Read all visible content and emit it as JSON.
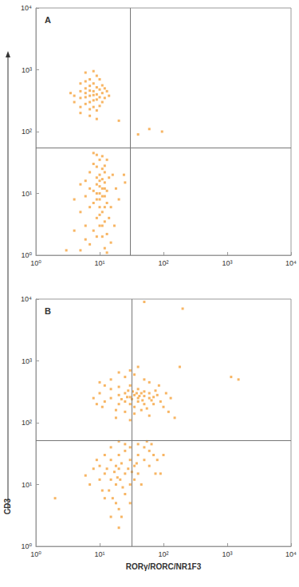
{
  "chart_data": [
    {
      "type": "scatter",
      "title": "A",
      "color": "#f5a33c",
      "marker": "square",
      "log": true,
      "grid": false,
      "quadrant": {
        "x": 30,
        "y": 55
      },
      "xlim": [
        1,
        10000
      ],
      "xticks": [
        {
          "value": 1,
          "label": "10⁰"
        },
        {
          "value": 10,
          "label": "10¹"
        },
        {
          "value": 100,
          "label": "10²"
        },
        {
          "value": 1000,
          "label": "10³"
        },
        {
          "value": 10000,
          "label": "10⁴"
        }
      ],
      "ylim": [
        1,
        10000
      ],
      "yticks": [
        {
          "value": 1,
          "label": "10⁰"
        },
        {
          "value": 10,
          "label": "10¹"
        },
        {
          "value": 100,
          "label": "10²"
        },
        {
          "value": 1000,
          "label": "10³"
        },
        {
          "value": 10000,
          "label": "10⁴"
        }
      ],
      "x": [
        5,
        6,
        7,
        8,
        9,
        7,
        6,
        8,
        10,
        11,
        9,
        7,
        6,
        5,
        4,
        8,
        10,
        9,
        7,
        6,
        12,
        11,
        5,
        8,
        9,
        7,
        10,
        4,
        13,
        6,
        8,
        5,
        3.5,
        12,
        9,
        7,
        8,
        6,
        10,
        11,
        14,
        7,
        9,
        5,
        60,
        95,
        40,
        20,
        10,
        11,
        9,
        12,
        10,
        11,
        9,
        8,
        12,
        13,
        10,
        11,
        9,
        12,
        10,
        8,
        11,
        13,
        7,
        12,
        5,
        6,
        15,
        14,
        15,
        13,
        14,
        12,
        10,
        9,
        11,
        8,
        7,
        6,
        6,
        7,
        5,
        4,
        5,
        8,
        13,
        16,
        18,
        20,
        24,
        25,
        9,
        10,
        11,
        12,
        9,
        10,
        11,
        8,
        12,
        7,
        10,
        11,
        9,
        13,
        6,
        4,
        3,
        17,
        10,
        9,
        12
      ],
      "values": [
        350,
        420,
        380,
        450,
        400,
        300,
        280,
        320,
        360,
        420,
        520,
        550,
        500,
        450,
        380,
        600,
        700,
        800,
        700,
        650,
        500,
        300,
        250,
        250,
        220,
        230,
        260,
        300,
        450,
        900,
        950,
        600,
        420,
        350,
        330,
        460,
        390,
        360,
        480,
        560,
        380,
        180,
        160,
        200,
        110,
        100,
        90,
        150,
        10,
        12,
        8,
        15,
        20,
        25,
        14,
        11,
        9,
        7,
        6,
        5,
        4,
        3.5,
        3,
        2.5,
        2,
        2.2,
        1.5,
        1.3,
        1.2,
        1.8,
        1.6,
        4,
        6,
        11,
        18,
        28,
        35,
        42,
        40,
        30,
        22,
        16,
        9,
        6,
        5,
        8,
        14,
        45,
        35,
        20,
        12,
        8,
        20,
        15,
        18,
        13,
        9,
        6,
        27,
        8,
        17,
        7,
        22,
        12,
        4.5,
        3,
        2,
        1.1,
        3,
        2.5,
        1.2,
        3,
        16,
        10,
        12
      ]
    },
    {
      "type": "scatter",
      "title": "B",
      "color": "#f5a33c",
      "marker": "square",
      "log": true,
      "grid": false,
      "xlabel": "RORγ/RORC/NR1F3",
      "ylabel": "CD3",
      "quadrant": {
        "x": 32,
        "y": 52
      },
      "xlim": [
        1,
        10000
      ],
      "xticks": [
        {
          "value": 1,
          "label": "10⁰"
        },
        {
          "value": 10,
          "label": "10¹"
        },
        {
          "value": 100,
          "label": "10²"
        },
        {
          "value": 1000,
          "label": "10³"
        },
        {
          "value": 10000,
          "label": "10⁴"
        }
      ],
      "ylim": [
        1,
        10000
      ],
      "yticks": [
        {
          "value": 1,
          "label": "10⁰"
        },
        {
          "value": 10,
          "label": "10¹"
        },
        {
          "value": 100,
          "label": "10²"
        },
        {
          "value": 1000,
          "label": "10³"
        },
        {
          "value": 10000,
          "label": "10⁴"
        }
      ],
      "x": [
        10,
        15,
        20,
        25,
        30,
        35,
        40,
        45,
        50,
        60,
        70,
        80,
        20,
        25,
        30,
        35,
        40,
        50,
        15,
        20,
        30,
        40,
        50,
        60,
        12,
        18,
        25,
        35,
        45,
        55,
        70,
        90,
        100,
        120,
        150,
        10,
        15,
        25,
        35,
        50,
        60,
        30,
        20,
        40,
        8,
        11,
        28,
        33,
        38,
        42,
        22,
        27,
        32,
        47,
        65,
        75,
        85,
        110,
        130,
        18,
        30,
        60,
        9,
        12,
        1150,
        1500,
        180,
        50,
        200,
        10,
        12,
        15,
        18,
        20,
        22,
        25,
        15,
        18,
        20,
        25,
        30,
        35,
        40,
        50,
        60,
        70,
        80,
        12,
        10,
        8,
        9,
        14,
        16,
        18,
        20,
        22,
        25,
        30,
        35,
        40,
        45,
        30,
        40,
        50,
        60,
        15,
        20,
        25,
        100,
        90,
        7,
        6,
        11,
        13,
        17,
        19,
        21,
        23,
        28,
        32,
        38,
        55,
        65,
        75,
        12,
        30,
        15,
        20,
        2
      ],
      "values": [
        300,
        250,
        280,
        300,
        260,
        280,
        250,
        300,
        270,
        250,
        260,
        280,
        200,
        220,
        200,
        180,
        220,
        200,
        350,
        380,
        400,
        350,
        320,
        300,
        220,
        160,
        150,
        140,
        160,
        170,
        200,
        220,
        180,
        150,
        120,
        450,
        500,
        550,
        600,
        500,
        450,
        700,
        650,
        800,
        250,
        180,
        330,
        320,
        300,
        270,
        240,
        260,
        240,
        230,
        230,
        330,
        400,
        300,
        250,
        120,
        110,
        130,
        200,
        400,
        550,
        500,
        800,
        9000,
        7000,
        20,
        15,
        25,
        20,
        18,
        22,
        15,
        12,
        10,
        30,
        35,
        25,
        20,
        30,
        25,
        20,
        30,
        25,
        30,
        12,
        18,
        25,
        8,
        6,
        5,
        4,
        3,
        7,
        10,
        12,
        15,
        10,
        40,
        45,
        40,
        35,
        40,
        50,
        45,
        30,
        15,
        10,
        14,
        8,
        18,
        16,
        13,
        12,
        9,
        18,
        16,
        22,
        50,
        45,
        15,
        6,
        5,
        3,
        2,
        6
      ]
    }
  ]
}
